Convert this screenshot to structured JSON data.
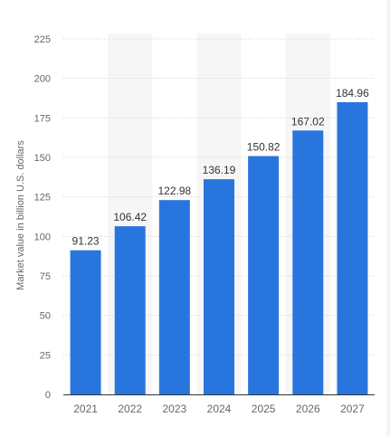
{
  "chart_data": {
    "type": "bar",
    "categories": [
      "2021",
      "2022",
      "2023",
      "2024",
      "2025",
      "2026",
      "2027"
    ],
    "values": [
      91.23,
      106.42,
      122.98,
      136.19,
      150.82,
      167.02,
      184.96
    ],
    "value_labels": [
      "91.23",
      "106.42",
      "122.98",
      "136.19",
      "150.82",
      "167.02",
      "184.96"
    ],
    "title": "",
    "xlabel": "",
    "ylabel": "Market value in billion U.S. dollars",
    "ylim": [
      0,
      225
    ],
    "yticks": [
      "0",
      "25",
      "50",
      "75",
      "100",
      "125",
      "150",
      "175",
      "200",
      "225"
    ],
    "grid": true,
    "legend": "none",
    "colors": {
      "bar": "#2876dd",
      "band": "#f6f6f6",
      "grid": "#cfcfcf",
      "tick_text": "#666666",
      "value_text": "#333333",
      "axis": "#333333"
    }
  }
}
